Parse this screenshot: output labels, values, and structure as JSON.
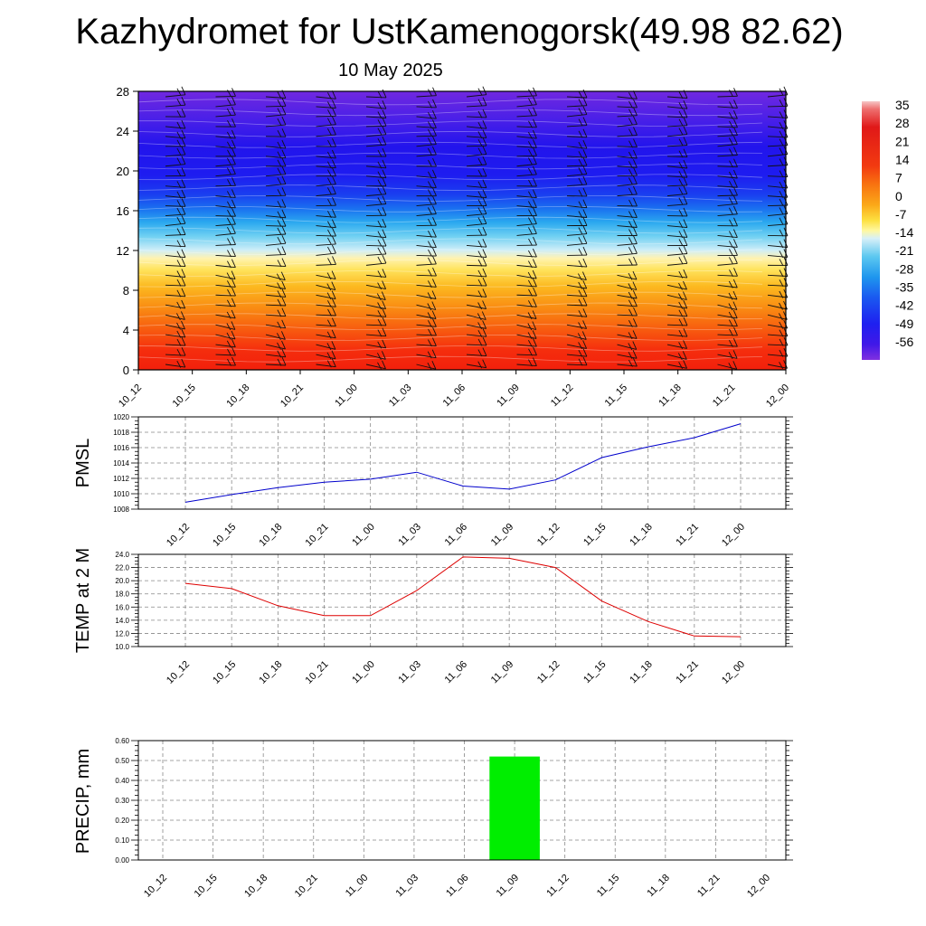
{
  "header": {
    "title": "Kazhydromet for UstKamenogorsk(49.98 82.62)",
    "subtitle": "10 May 2025"
  },
  "chart_data": [
    {
      "type": "heatmap",
      "ylim": [
        0,
        28
      ],
      "y_ticks": [
        "0",
        "4",
        "8",
        "12",
        "16",
        "20",
        "24",
        "28"
      ],
      "x_ticks": [
        "10_12",
        "10_15",
        "10_18",
        "10_21",
        "11_00",
        "11_03",
        "11_06",
        "11_09",
        "11_12",
        "11_15",
        "11_18",
        "11_21",
        "12_00"
      ],
      "colorbar_labels": [
        "35",
        "28",
        "21",
        "14",
        "7",
        "0",
        "-7",
        "-14",
        "-21",
        "-28",
        "-35",
        "-42",
        "-49",
        "-56"
      ]
    },
    {
      "type": "line",
      "ylabel": "PMSL",
      "ylim": [
        1008,
        1020
      ],
      "y_ticks": [
        "1008",
        "1010",
        "1012",
        "1014",
        "1016",
        "1018",
        "1020"
      ],
      "x": [
        "10_12",
        "10_15",
        "10_18",
        "10_21",
        "11_00",
        "11_03",
        "11_06",
        "11_09",
        "11_12",
        "11_15",
        "11_18",
        "11_21",
        "12_00"
      ],
      "values": [
        1008.9,
        1009.9,
        1010.8,
        1011.5,
        1011.9,
        1012.8,
        1011.0,
        1010.6,
        1011.8,
        1014.7,
        1016.1,
        1017.3,
        1019.1
      ],
      "color": "#0000cc"
    },
    {
      "type": "line",
      "ylabel": "TEMP at 2 M",
      "ylim": [
        10.0,
        24.0
      ],
      "y_ticks": [
        "10.0",
        "12.0",
        "14.0",
        "16.0",
        "18.0",
        "20.0",
        "22.0",
        "24.0"
      ],
      "x": [
        "10_12",
        "10_15",
        "10_18",
        "10_21",
        "11_00",
        "11_03",
        "11_06",
        "11_09",
        "11_12",
        "11_15",
        "11_18",
        "11_21",
        "12_00"
      ],
      "values": [
        19.6,
        18.8,
        16.2,
        14.7,
        14.7,
        18.5,
        23.6,
        23.4,
        22.0,
        16.9,
        13.8,
        11.6,
        11.5
      ],
      "color": "#dd0000"
    },
    {
      "type": "bar",
      "ylabel": "PRECIP, mm",
      "ylim": [
        0,
        0.6
      ],
      "y_ticks": [
        "0.00",
        "0.10",
        "0.20",
        "0.30",
        "0.40",
        "0.50",
        "0.60"
      ],
      "categories": [
        "10_12",
        "10_15",
        "10_18",
        "10_21",
        "11_00",
        "11_03",
        "11_06",
        "11_09",
        "11_12",
        "11_15",
        "11_18",
        "11_21",
        "12_00"
      ],
      "values": [
        0,
        0,
        0,
        0,
        0,
        0,
        0,
        0.52,
        0,
        0,
        0,
        0,
        0
      ],
      "color": "#00ee00"
    }
  ]
}
